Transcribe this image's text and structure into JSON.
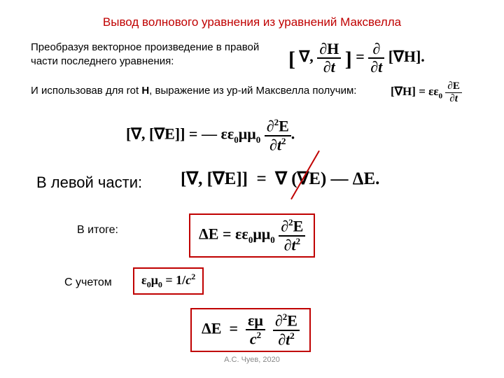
{
  "title": "Вывод волнового уравнения из уравнений Максвелла",
  "para1": "Преобразуя векторное произведение в правой части последнего уравнения:",
  "para2_a": "И использовав для rot ",
  "para2_b": "H",
  "para2_c": ", выражение из ур-ий Максвелла получим:",
  "left_label": "В левой части:",
  "result_label": "В итоге:",
  "with_label": "С учетом",
  "footer": "А.С. Чуев, 2020",
  "colors": {
    "title": "#c00000",
    "box_border": "#c00000",
    "text": "#000000",
    "footer": "#888888",
    "bg": "#ffffff"
  },
  "fonts": {
    "body": "Arial",
    "math": "Times New Roman",
    "title_size": 17,
    "body_size": 15,
    "left_label_size": 22,
    "result_label_size": 16
  }
}
